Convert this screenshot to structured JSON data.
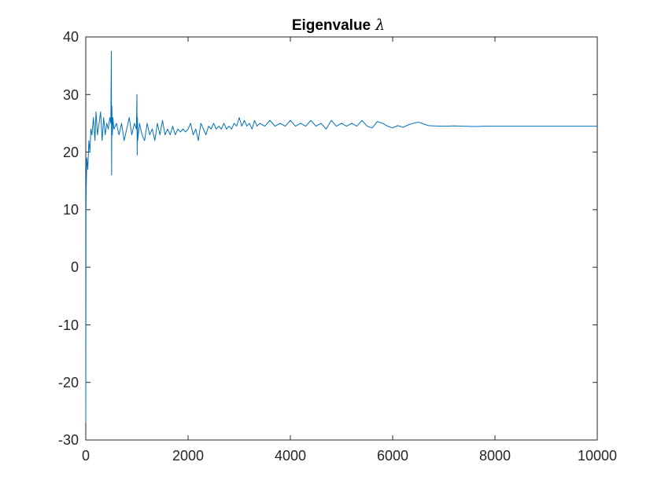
{
  "chart_data": {
    "type": "line",
    "title": "Eigenvalue",
    "title_symbol": "λ",
    "xlabel": "",
    "ylabel": "",
    "xlim": [
      0,
      10000
    ],
    "ylim": [
      -30,
      40
    ],
    "x_ticks": [
      0,
      2000,
      4000,
      6000,
      8000,
      10000
    ],
    "x_tick_labels": [
      "0",
      "2000",
      "4000",
      "6000",
      "8000",
      "10000"
    ],
    "y_ticks": [
      -30,
      -20,
      -10,
      0,
      10,
      20,
      30,
      40
    ],
    "y_tick_labels": [
      "-30",
      "-20",
      "-10",
      "0",
      "10",
      "20",
      "30",
      "40"
    ],
    "grid": false,
    "line_color": "#0072bd",
    "series": [
      {
        "x": [
          0,
          5,
          10,
          20,
          40,
          60,
          80,
          100,
          120,
          150,
          180,
          200,
          230,
          260,
          290,
          320,
          350,
          380,
          410,
          440,
          470,
          490,
          500,
          505,
          510,
          520,
          530,
          550,
          600,
          650,
          700,
          750,
          800,
          850,
          900,
          950,
          990,
          1000,
          1005,
          1010,
          1015,
          1050,
          1100,
          1150,
          1200,
          1250,
          1300,
          1350,
          1400,
          1450,
          1500,
          1550,
          1600,
          1650,
          1700,
          1750,
          1800,
          1850,
          1900,
          1950,
          2000,
          2050,
          2100,
          2150,
          2200,
          2250,
          2300,
          2350,
          2400,
          2450,
          2500,
          2550,
          2600,
          2650,
          2700,
          2750,
          2800,
          2850,
          2900,
          2950,
          3000,
          3050,
          3100,
          3150,
          3200,
          3250,
          3300,
          3350,
          3400,
          3500,
          3600,
          3700,
          3800,
          3900,
          4000,
          4100,
          4200,
          4300,
          4400,
          4500,
          4600,
          4700,
          4800,
          4900,
          5000,
          5100,
          5200,
          5300,
          5400,
          5500,
          5600,
          5700,
          5800,
          5900,
          6000,
          6100,
          6200,
          6300,
          6400,
          6500,
          6600,
          6700,
          6800,
          7000,
          7200,
          7400,
          7600,
          7800,
          8000,
          8500,
          9000,
          9500,
          10000
        ],
        "y": [
          -27,
          10,
          14,
          19,
          17,
          22,
          20,
          24,
          23,
          26,
          22,
          27,
          23,
          25,
          27,
          22,
          26,
          23,
          25,
          24,
          26,
          25,
          37.5,
          16,
          28,
          23,
          26,
          24,
          25,
          23,
          25,
          22,
          24,
          26,
          23,
          25,
          24,
          30,
          19.5,
          26,
          22,
          25,
          23,
          22,
          25,
          23,
          24,
          22,
          25,
          23,
          25.5,
          23,
          24,
          23,
          24.5,
          23,
          24,
          23.5,
          24,
          23.5,
          24,
          25,
          23,
          24,
          22,
          25,
          24,
          23,
          24.5,
          24,
          25,
          24,
          24.5,
          24,
          25,
          24,
          24.5,
          24,
          25,
          24.5,
          26,
          24.5,
          25.5,
          24.5,
          25,
          24,
          25.5,
          24.5,
          25,
          24.5,
          25.5,
          24.5,
          25,
          24.5,
          25.5,
          24.5,
          25,
          24.5,
          25.5,
          24.5,
          25,
          24,
          25.5,
          24.5,
          25,
          24.5,
          25,
          24.5,
          25.5,
          24.5,
          24.2,
          25.3,
          25.0,
          24.5,
          24.2,
          24.6,
          24.3,
          24.7,
          25.0,
          25.2,
          24.9,
          24.6,
          24.55,
          24.5,
          24.55,
          24.5,
          24.45,
          24.5,
          24.5,
          24.5,
          24.5,
          24.5,
          24.5
        ]
      }
    ]
  }
}
